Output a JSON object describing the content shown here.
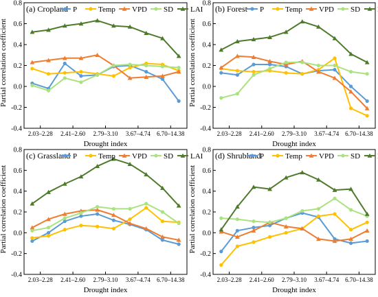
{
  "figure": {
    "shared_x_categories": [
      "2.03–2.28",
      "2.41–2.60",
      "2.79–3.10",
      "3.67–4.74",
      "6.70–14.38"
    ],
    "xlabel": "Drought index",
    "ylabel": "Partial correlation coefficient"
  },
  "chart_data": [
    {
      "type": "line",
      "title": "(a) Cropland",
      "xlabel": "Drought index",
      "ylabel": "Partial correlation coefficient",
      "ylim": [
        -0.4,
        0.8
      ],
      "yticks": [
        -0.4,
        -0.2,
        0.0,
        0.2,
        0.4,
        0.6,
        0.8
      ],
      "x_tick_labels": [
        "2.03–2.28",
        "2.41–2.60",
        "2.79–3.10",
        "3.67–4.74",
        "6.70–14.38"
      ],
      "legend_position": "top",
      "series": [
        {
          "name": "P",
          "color": "#5B9BD5",
          "marker": "circle",
          "values": [
            0.03,
            -0.02,
            0.22,
            0.1,
            0.11,
            0.19,
            0.2,
            0.14,
            0.07,
            -0.14
          ]
        },
        {
          "name": "Temp",
          "color": "#FFC000",
          "marker": "circle",
          "values": [
            0.17,
            0.12,
            0.13,
            0.14,
            0.12,
            0.1,
            0.18,
            0.22,
            0.21,
            0.15
          ]
        },
        {
          "name": "VPD",
          "color": "#ED7D31",
          "marker": "triangle",
          "values": [
            0.23,
            0.25,
            0.27,
            0.27,
            0.3,
            0.2,
            0.08,
            0.09,
            0.1,
            0.14
          ]
        },
        {
          "name": "SD",
          "color": "#A9E27E",
          "marker": "circle",
          "values": [
            0.01,
            -0.04,
            0.08,
            0.04,
            0.11,
            0.2,
            0.21,
            0.2,
            0.19,
            0.18
          ]
        },
        {
          "name": "LAI",
          "color": "#4E7A2C",
          "marker": "triangle",
          "values": [
            0.52,
            0.54,
            0.58,
            0.6,
            0.63,
            0.58,
            0.57,
            0.51,
            0.46,
            0.29
          ]
        }
      ]
    },
    {
      "type": "line",
      "title": "(b) Forest",
      "xlabel": "Drought index",
      "ylabel": "Partial correlation coefficient",
      "ylim": [
        -0.4,
        0.8
      ],
      "yticks": [
        -0.4,
        -0.2,
        0.0,
        0.2,
        0.4,
        0.6,
        0.8
      ],
      "x_tick_labels": [
        "2.03–2.28",
        "2.41–2.60",
        "2.79–3.10",
        "3.67–4.74",
        "6.70–14.38"
      ],
      "legend_position": "top",
      "series": [
        {
          "name": "P",
          "color": "#5B9BD5",
          "marker": "circle",
          "values": [
            0.13,
            0.11,
            0.21,
            0.21,
            0.19,
            0.12,
            0.15,
            0.16,
            0.0,
            -0.14
          ]
        },
        {
          "name": "Temp",
          "color": "#FFC000",
          "marker": "circle",
          "values": [
            0.17,
            0.15,
            0.14,
            0.15,
            0.13,
            0.12,
            0.16,
            0.27,
            -0.21,
            -0.28
          ]
        },
        {
          "name": "VPD",
          "color": "#ED7D31",
          "marker": "triangle",
          "values": [
            0.18,
            0.29,
            0.28,
            0.24,
            0.21,
            0.24,
            0.14,
            0.08,
            -0.05,
            -0.21
          ]
        },
        {
          "name": "SD",
          "color": "#A9E27E",
          "marker": "circle",
          "values": [
            -0.11,
            -0.07,
            0.11,
            0.17,
            0.23,
            0.23,
            0.2,
            0.2,
            0.14,
            0.12
          ]
        },
        {
          "name": "LAI",
          "color": "#4E7A2C",
          "marker": "triangle",
          "values": [
            0.35,
            0.43,
            0.45,
            0.47,
            0.52,
            0.62,
            0.57,
            0.46,
            0.31,
            0.23
          ]
        }
      ]
    },
    {
      "type": "line",
      "title": "(c) Grassland",
      "xlabel": "Drought index",
      "ylabel": "Partial correlation coefficient",
      "ylim": [
        -0.4,
        0.8
      ],
      "yticks": [
        -0.4,
        -0.2,
        0.0,
        0.2,
        0.4,
        0.6,
        0.8
      ],
      "x_tick_labels": [
        "2.03–2.28",
        "2.41–2.60",
        "2.79–3.10",
        "3.67–4.74",
        "6.70–14.38"
      ],
      "legend_position": "top",
      "series": [
        {
          "name": "P",
          "color": "#5B9BD5",
          "marker": "circle",
          "values": [
            -0.08,
            0.0,
            0.11,
            0.16,
            0.18,
            0.12,
            0.08,
            0.03,
            -0.07,
            -0.11
          ]
        },
        {
          "name": "Temp",
          "color": "#FFC000",
          "marker": "circle",
          "values": [
            -0.05,
            -0.03,
            0.03,
            0.07,
            0.06,
            0.04,
            0.13,
            0.24,
            0.11,
            0.1
          ]
        },
        {
          "name": "VPD",
          "color": "#ED7D31",
          "marker": "triangle",
          "values": [
            0.05,
            0.13,
            0.18,
            0.21,
            0.22,
            0.17,
            0.09,
            0.04,
            -0.04,
            -0.07
          ]
        },
        {
          "name": "SD",
          "color": "#A9E27E",
          "marker": "circle",
          "values": [
            0.02,
            0.05,
            0.14,
            0.19,
            0.25,
            0.23,
            0.23,
            0.28,
            0.2,
            0.09
          ]
        },
        {
          "name": "LAI",
          "color": "#4E7A2C",
          "marker": "triangle",
          "values": [
            0.28,
            0.39,
            0.47,
            0.54,
            0.64,
            0.71,
            0.66,
            0.56,
            0.43,
            0.26
          ]
        }
      ]
    },
    {
      "type": "line",
      "title": "(d) Shrubland",
      "xlabel": "Drought index",
      "ylabel": "Partial correlation coefficient",
      "ylim": [
        -0.4,
        0.8
      ],
      "yticks": [
        -0.4,
        -0.2,
        0.0,
        0.2,
        0.4,
        0.6,
        0.8
      ],
      "x_tick_labels": [
        "2.03–2.28",
        "2.41–2.60",
        "2.79–3.10",
        "3.67–4.74",
        "6.70–14.38"
      ],
      "legend_position": "top",
      "series": [
        {
          "name": "P",
          "color": "#5B9BD5",
          "marker": "circle",
          "values": [
            -0.18,
            0.02,
            0.05,
            0.07,
            0.14,
            0.19,
            0.15,
            -0.06,
            -0.1,
            -0.08
          ]
        },
        {
          "name": "Temp",
          "color": "#FFC000",
          "marker": "circle",
          "values": [
            -0.31,
            -0.13,
            -0.09,
            -0.04,
            0.0,
            0.04,
            0.16,
            0.18,
            0.03,
            0.1
          ]
        },
        {
          "name": "VPD",
          "color": "#ED7D31",
          "marker": "triangle",
          "values": [
            0.01,
            -0.04,
            0.02,
            0.1,
            0.06,
            0.04,
            -0.06,
            -0.08,
            -0.06,
            0.02
          ]
        },
        {
          "name": "SD",
          "color": "#A9E27E",
          "marker": "circle",
          "values": [
            0.14,
            0.13,
            0.11,
            0.1,
            0.14,
            0.21,
            0.23,
            0.33,
            0.22,
            0.16
          ]
        },
        {
          "name": "LAI",
          "color": "#4E7A2C",
          "marker": "triangle",
          "values": [
            0.03,
            0.25,
            0.44,
            0.42,
            0.53,
            0.58,
            0.51,
            0.41,
            0.42,
            0.18
          ]
        }
      ]
    }
  ]
}
